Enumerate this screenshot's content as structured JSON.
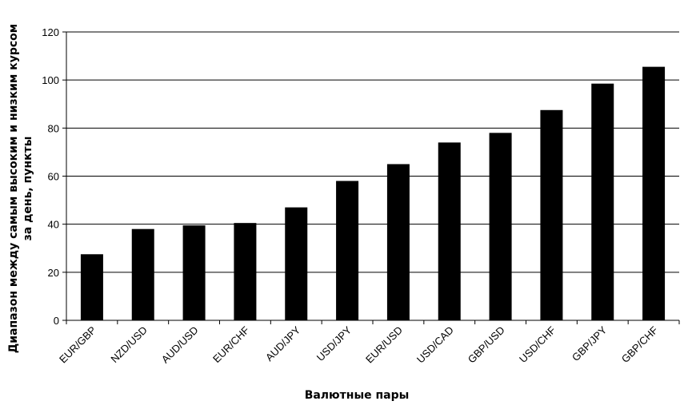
{
  "chart_data": {
    "type": "bar",
    "title": "",
    "xlabel": "Валютные пары",
    "ylabel_line1": "Диапазон между самым высоким и низким курсом",
    "ylabel_line2": "за день, пункты",
    "categories": [
      "EUR/GBP",
      "NZD/USD",
      "AUD/USD",
      "EUR/CHF",
      "AUD/JPY",
      "USD/JPY",
      "EUR/USD",
      "USD/CAD",
      "GBP/USD",
      "USD/CHF",
      "GBP/JPY",
      "GBP/CHF"
    ],
    "values": [
      27.5,
      38,
      39.5,
      40.5,
      47,
      58,
      65,
      74,
      78,
      87.5,
      98.5,
      105.5
    ],
    "ylim": [
      0,
      120
    ],
    "yticks": [
      0,
      20,
      40,
      60,
      80,
      100,
      120
    ],
    "grid": "horizontal",
    "bar_color": "#000000",
    "legend": "none"
  }
}
